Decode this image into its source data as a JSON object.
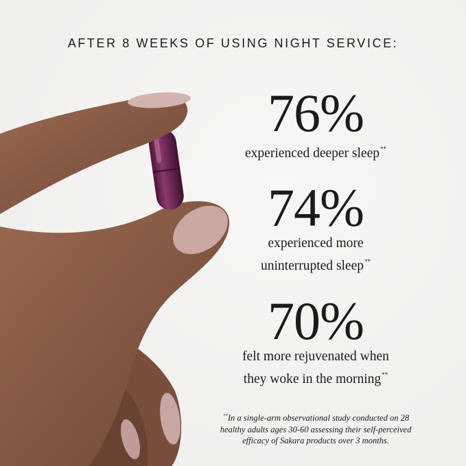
{
  "header": {
    "title": "AFTER 8 WEEKS OF USING NIGHT SERVICE:"
  },
  "stats": [
    {
      "value": "76%",
      "lines": [
        "experienced deeper sleep"
      ],
      "mark": "**"
    },
    {
      "value": "74%",
      "lines": [
        "experienced more",
        "uninterrupted sleep"
      ],
      "mark": "**"
    },
    {
      "value": "70%",
      "lines": [
        "felt more rejuvenated when",
        "they woke in the morning"
      ],
      "mark": "**"
    }
  ],
  "footnote": {
    "mark": "**",
    "lines": [
      "In a single-arm observational study conducted on 28",
      "healthy adults ages 30-60 assessing their self-perceived",
      "efficacy of Sakara products over 3 months."
    ]
  }
}
